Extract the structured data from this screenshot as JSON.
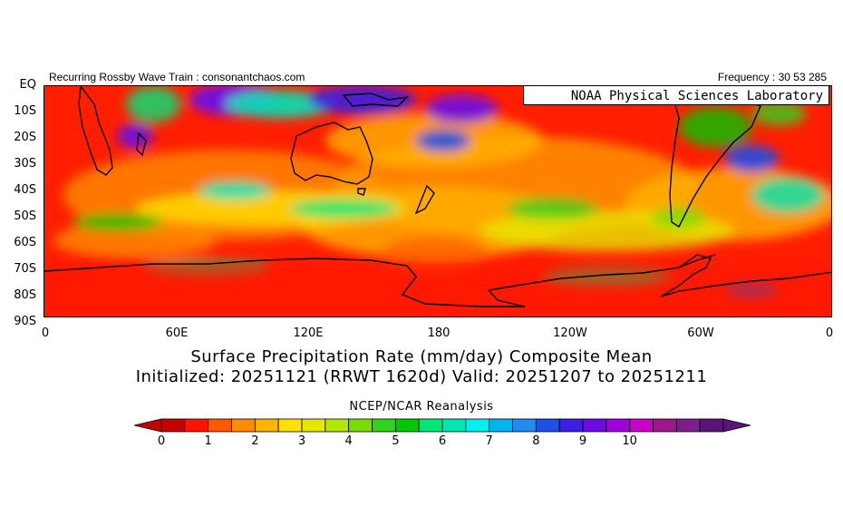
{
  "header": {
    "left_text": "Recurring Rossby Wave Train : consonantchaos.com",
    "right_text": "Frequency : 30 53 285",
    "org_label": "NOAA Physical Sciences Laboratory"
  },
  "map": {
    "lat_labels": [
      "EQ",
      "10S",
      "20S",
      "30S",
      "40S",
      "50S",
      "60S",
      "70S",
      "80S",
      "90S"
    ],
    "lon_labels": [
      "0",
      "60E",
      "120E",
      "180",
      "120W",
      "60W",
      "0"
    ]
  },
  "title": {
    "line1": "Surface Precipitation Rate (mm/day) Composite Mean",
    "line2": "Initialized: 20251121 (RRWT 1620d) Valid: 20251207 to 20251211"
  },
  "source": "NCEP/NCAR Reanalysis",
  "colorbar": {
    "labels": [
      "0",
      "1",
      "2",
      "3",
      "4",
      "5",
      "6",
      "7",
      "8",
      "9",
      "10"
    ],
    "colors": [
      "#c40000",
      "#ff1400",
      "#ff5a00",
      "#ff8c00",
      "#ffb400",
      "#ffe100",
      "#e6e600",
      "#b4e600",
      "#78dc00",
      "#32d21e",
      "#00c800",
      "#00e678",
      "#00e6b4",
      "#00f0f0",
      "#00b4f0",
      "#1e8cf0",
      "#1e50e6",
      "#3c1ee6",
      "#6e0ae6",
      "#a000dc",
      "#c800c8",
      "#a0148c",
      "#7d1e8c",
      "#5a1478"
    ]
  }
}
